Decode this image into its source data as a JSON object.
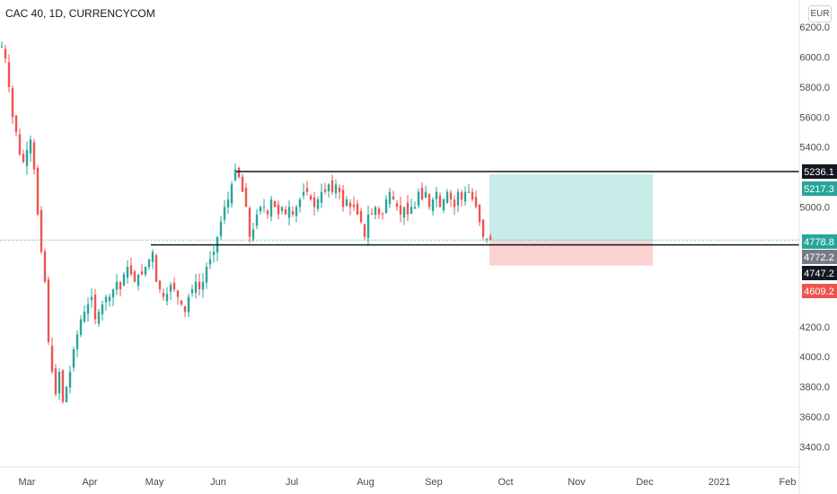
{
  "header": {
    "title": "CAC 40, 1D, CURRENCYCOM",
    "currency": "EUR"
  },
  "price_labels": [
    {
      "text": "5236.1",
      "bg": "#131722",
      "fg": "#ffffff"
    },
    {
      "text": "5217.3",
      "bg": "#26a69a",
      "fg": "#ffffff"
    },
    {
      "text": "4778.8",
      "bg": "#26a69a",
      "fg": "#ffffff"
    },
    {
      "text": "4772.2",
      "bg": "#787b86",
      "fg": "#ffffff"
    },
    {
      "text": "4747.2",
      "bg": "#131722",
      "fg": "#ffffff"
    },
    {
      "text": "4609.2",
      "bg": "#ef5350",
      "fg": "#ffffff"
    }
  ],
  "colors": {
    "up": "#26a69a",
    "down": "#ef5350",
    "line": "#131722",
    "target_zone": "#c8ebe7",
    "stop_zone": "#fcd3d2"
  },
  "chart_data": {
    "type": "candlestick",
    "yticks": [
      "6200.0",
      "6000.0",
      "5800.0",
      "5600.0",
      "5400.0",
      "5000.0",
      "4200.0",
      "4000.0",
      "3800.0",
      "3600.0",
      "3400.0"
    ],
    "xticks": [
      "Mar",
      "Apr",
      "May",
      "Jun",
      "Jul",
      "Aug",
      "Sep",
      "Oct",
      "Nov",
      "Dec",
      "2021",
      "Feb"
    ],
    "ylim": [
      3250,
      6250
    ],
    "resistance_level": 5236.1,
    "support_level": 4747.2,
    "last_price": 4778.8,
    "position": {
      "entry": 4772.2,
      "target": 5217.3,
      "stop": 4609.2
    },
    "close_path": [
      [
        0,
        6070
      ],
      [
        4,
        5990
      ],
      [
        8,
        5800
      ],
      [
        12,
        5600
      ],
      [
        16,
        5500
      ],
      [
        20,
        5350
      ],
      [
        24,
        5300
      ],
      [
        28,
        5380
      ],
      [
        32,
        5450
      ],
      [
        36,
        5250
      ],
      [
        40,
        4950
      ],
      [
        44,
        4700
      ],
      [
        48,
        4500
      ],
      [
        52,
        4100
      ],
      [
        56,
        3900
      ],
      [
        60,
        3750
      ],
      [
        64,
        3900
      ],
      [
        68,
        3700
      ],
      [
        72,
        3800
      ],
      [
        76,
        3900
      ],
      [
        80,
        4050
      ],
      [
        84,
        4150
      ],
      [
        88,
        4250
      ],
      [
        92,
        4300
      ],
      [
        96,
        4350
      ],
      [
        100,
        4400
      ],
      [
        104,
        4250
      ],
      [
        108,
        4300
      ],
      [
        112,
        4350
      ],
      [
        116,
        4400
      ],
      [
        120,
        4400
      ],
      [
        124,
        4450
      ],
      [
        128,
        4500
      ],
      [
        132,
        4450
      ],
      [
        136,
        4550
      ],
      [
        140,
        4600
      ],
      [
        144,
        4550
      ],
      [
        148,
        4500
      ],
      [
        152,
        4550
      ],
      [
        156,
        4550
      ],
      [
        160,
        4600
      ],
      [
        164,
        4650
      ],
      [
        168,
        4700
      ],
      [
        172,
        4500
      ],
      [
        176,
        4450
      ],
      [
        180,
        4400
      ],
      [
        184,
        4420
      ],
      [
        188,
        4480
      ],
      [
        192,
        4450
      ],
      [
        196,
        4400
      ],
      [
        200,
        4350
      ],
      [
        204,
        4300
      ],
      [
        208,
        4400
      ],
      [
        212,
        4450
      ],
      [
        216,
        4500
      ],
      [
        220,
        4450
      ],
      [
        224,
        4500
      ],
      [
        228,
        4600
      ],
      [
        232,
        4650
      ],
      [
        236,
        4700
      ],
      [
        240,
        4800
      ],
      [
        244,
        4900
      ],
      [
        248,
        5000
      ],
      [
        252,
        5050
      ],
      [
        256,
        5150
      ],
      [
        260,
        5250
      ],
      [
        264,
        5200
      ],
      [
        268,
        5100
      ],
      [
        272,
        5000
      ],
      [
        276,
        4800
      ],
      [
        280,
        4850
      ],
      [
        284,
        4950
      ],
      [
        288,
        5000
      ],
      [
        292,
        5000
      ],
      [
        296,
        4950
      ],
      [
        300,
        5050
      ],
      [
        304,
        5000
      ],
      [
        308,
        4950
      ],
      [
        312,
        5000
      ],
      [
        316,
        4950
      ],
      [
        320,
        5000
      ],
      [
        324,
        4950
      ],
      [
        328,
        5000
      ],
      [
        332,
        5050
      ],
      [
        336,
        5100
      ],
      [
        340,
        5100
      ],
      [
        344,
        5050
      ],
      [
        348,
        5000
      ],
      [
        352,
        5050
      ],
      [
        356,
        5100
      ],
      [
        360,
        5100
      ],
      [
        364,
        5150
      ],
      [
        368,
        5100
      ],
      [
        372,
        5150
      ],
      [
        376,
        5100
      ],
      [
        380,
        5000
      ],
      [
        384,
        5050
      ],
      [
        388,
        5000
      ],
      [
        392,
        5000
      ],
      [
        396,
        4950
      ],
      [
        400,
        4900
      ],
      [
        404,
        4800
      ],
      [
        408,
        4950
      ],
      [
        412,
        4950
      ],
      [
        416,
        5000
      ],
      [
        420,
        4950
      ],
      [
        424,
        4950
      ],
      [
        428,
        5050
      ],
      [
        432,
        5100
      ],
      [
        436,
        5050
      ],
      [
        440,
        5000
      ],
      [
        444,
        4950
      ],
      [
        448,
        5000
      ],
      [
        452,
        4950
      ],
      [
        456,
        5000
      ],
      [
        460,
        5000
      ],
      [
        464,
        5100
      ],
      [
        468,
        5050
      ],
      [
        472,
        5100
      ],
      [
        476,
        5000
      ],
      [
        480,
        5050
      ],
      [
        484,
        5100
      ],
      [
        488,
        5000
      ],
      [
        492,
        5050
      ],
      [
        496,
        5100
      ],
      [
        500,
        5050
      ],
      [
        504,
        5000
      ],
      [
        508,
        5100
      ],
      [
        512,
        5050
      ],
      [
        516,
        5100
      ],
      [
        520,
        5100
      ],
      [
        524,
        5050
      ],
      [
        528,
        5000
      ],
      [
        532,
        4900
      ],
      [
        536,
        4800
      ],
      [
        540,
        4790
      ],
      [
        544,
        4779
      ]
    ]
  }
}
